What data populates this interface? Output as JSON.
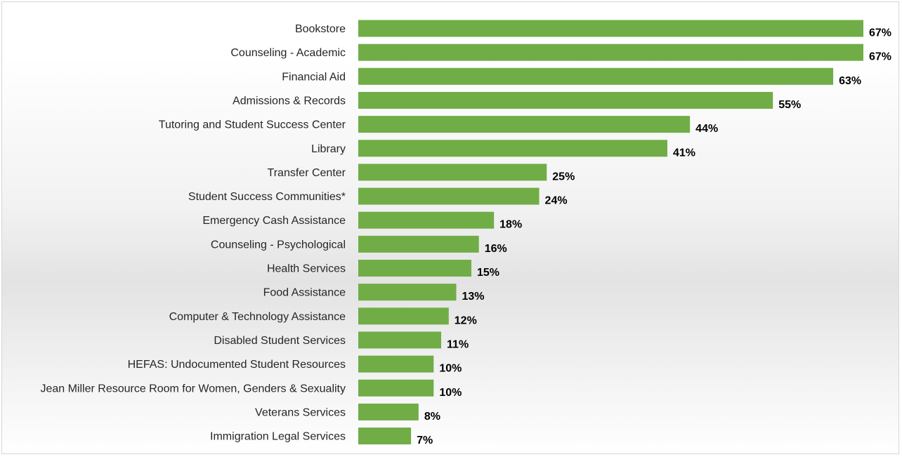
{
  "chart_data": {
    "type": "bar",
    "orientation": "horizontal",
    "title": "",
    "xlabel": "",
    "ylabel": "",
    "bar_color": "#70ad47",
    "value_suffix": "%",
    "xlim": [
      0,
      67
    ],
    "grid": false,
    "legend": "none",
    "categories": [
      "Bookstore",
      "Counseling - Academic",
      "Financial Aid",
      "Admissions & Records",
      "Tutoring and Student Success Center",
      "Library",
      "Transfer Center",
      "Student Success Communities*",
      "Emergency Cash Assistance",
      "Counseling - Psychological",
      "Health Services",
      "Food Assistance",
      "Computer & Technology Assistance",
      "Disabled Student Services",
      "HEFAS: Undocumented Student Resources",
      "Jean Miller Resource Room for Women, Genders & Sexuality",
      "Veterans Services",
      "Immigration Legal Services"
    ],
    "values": [
      67,
      67,
      63,
      55,
      44,
      41,
      25,
      24,
      18,
      16,
      15,
      13,
      12,
      11,
      10,
      10,
      8,
      7
    ],
    "value_labels": [
      "67%",
      "67%",
      "63%",
      "55%",
      "44%",
      "41%",
      "25%",
      "24%",
      "18%",
      "16%",
      "15%",
      "13%",
      "12%",
      "11%",
      "10%",
      "10%",
      "8%",
      "7%"
    ]
  }
}
